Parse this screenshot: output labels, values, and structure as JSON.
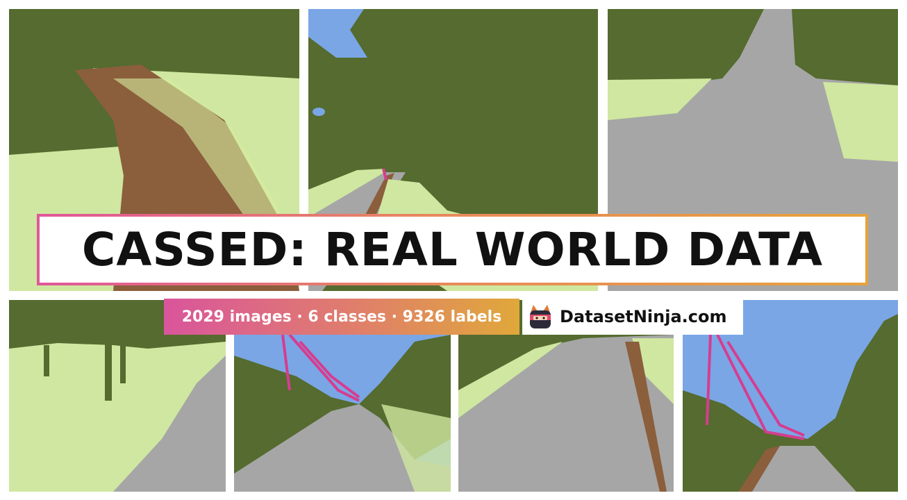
{
  "banner": {
    "title": "CASSED: REAL WORLD DATA"
  },
  "stats": {
    "text": "2029 images · 6 classes · 9326 labels"
  },
  "brand": {
    "name": "DatasetNinja.com",
    "logo": "ninja-cat-logo-icon"
  },
  "colors": {
    "forest": "#556b2f",
    "grass": "#d7ef9f",
    "dirt_path": "#8b5e3c",
    "gravel_path": "#a6a6a6",
    "sky": "#7aa6e6",
    "power_tower": "#d63d8f"
  }
}
